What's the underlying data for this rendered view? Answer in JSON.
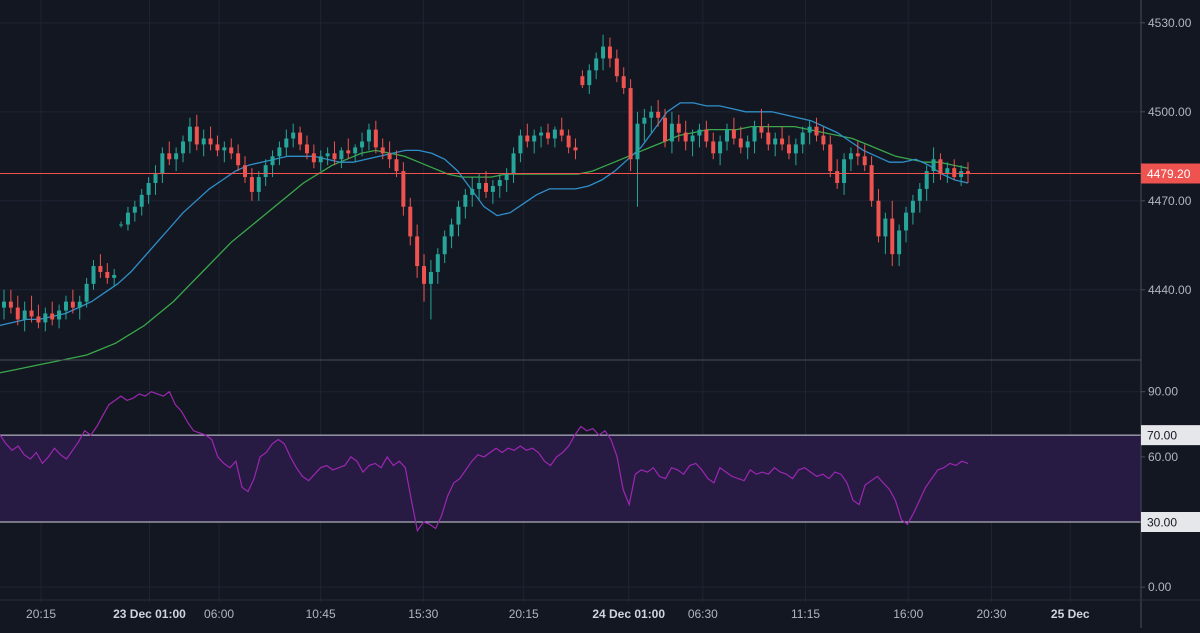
{
  "chart_data": {
    "type": "candlestick",
    "colors": {
      "background": "#131722",
      "grid": "#1f2433",
      "up": "#26a69a",
      "down": "#ef5350",
      "ma_fast": "#2f8fc9",
      "ma_slow": "#3aa84a",
      "rsi_line": "#9c27b0",
      "rsi_band": "#2a1b47",
      "last_price_line": "#ef5350",
      "band_lines": "#d1d4dc",
      "axis_text": "#b2b5be"
    },
    "price_panel": {
      "ylim": [
        4417,
        4535
      ],
      "y_ticks": [
        "4530.00",
        "4500.00",
        "4470.00",
        "4440.00"
      ],
      "y_tick_values": [
        4530,
        4500,
        4470,
        4440
      ],
      "last_price": 4479.2,
      "last_price_label": "4479.20",
      "candles": [
        [
          4434,
          4440,
          4430,
          4436
        ],
        [
          4436,
          4440,
          4432,
          4434
        ],
        [
          4434,
          4438,
          4428,
          4430
        ],
        [
          4430,
          4436,
          4426,
          4433
        ],
        [
          4433,
          4438,
          4429,
          4431
        ],
        [
          4431,
          4435,
          4427,
          4429
        ],
        [
          4429,
          4434,
          4426,
          4432
        ],
        [
          4432,
          4436,
          4428,
          4430
        ],
        [
          4430,
          4435,
          4427,
          4433
        ],
        [
          4433,
          4438,
          4430,
          4436
        ],
        [
          4436,
          4440,
          4432,
          4434
        ],
        [
          4434,
          4438,
          4430,
          4436
        ],
        [
          4436,
          4444,
          4434,
          4442
        ],
        [
          4442,
          4450,
          4440,
          4448
        ],
        [
          4448,
          4452,
          4444,
          4446
        ],
        [
          4446,
          4449,
          4442,
          4444
        ],
        [
          4444,
          4447,
          4441,
          4445
        ],
        [
          4462,
          4463,
          4461,
          4462
        ],
        [
          4462,
          4468,
          4460,
          4466
        ],
        [
          4466,
          4470,
          4463,
          4468
        ],
        [
          4468,
          4474,
          4465,
          4472
        ],
        [
          4472,
          4478,
          4469,
          4476
        ],
        [
          4476,
          4482,
          4472,
          4479
        ],
        [
          4479,
          4488,
          4476,
          4486
        ],
        [
          4486,
          4490,
          4482,
          4484
        ],
        [
          4484,
          4488,
          4480,
          4486
        ],
        [
          4486,
          4492,
          4483,
          4490
        ],
        [
          4490,
          4498,
          4486,
          4495
        ],
        [
          4495,
          4499,
          4487,
          4489
        ],
        [
          4489,
          4494,
          4485,
          4491
        ],
        [
          4491,
          4495,
          4487,
          4489
        ],
        [
          4489,
          4492,
          4485,
          4487
        ],
        [
          4487,
          4490,
          4483,
          4488
        ],
        [
          4488,
          4491,
          4484,
          4486
        ],
        [
          4486,
          4489,
          4480,
          4482
        ],
        [
          4482,
          4485,
          4476,
          4478
        ],
        [
          4478,
          4481,
          4470,
          4473
        ],
        [
          4473,
          4480,
          4470,
          4478
        ],
        [
          4478,
          4484,
          4475,
          4482
        ],
        [
          4482,
          4487,
          4478,
          4485
        ],
        [
          4485,
          4490,
          4482,
          4488
        ],
        [
          4488,
          4494,
          4485,
          4491
        ],
        [
          4491,
          4496,
          4488,
          4493
        ],
        [
          4493,
          4495,
          4487,
          4489
        ],
        [
          4489,
          4492,
          4484,
          4486
        ],
        [
          4486,
          4489,
          4481,
          4483
        ],
        [
          4483,
          4487,
          4480,
          4485
        ],
        [
          4485,
          4488,
          4482,
          4486
        ],
        [
          4486,
          4490,
          4482,
          4484
        ],
        [
          4484,
          4488,
          4481,
          4487
        ],
        [
          4487,
          4491,
          4484,
          4486
        ],
        [
          4486,
          4489,
          4483,
          4488
        ],
        [
          4488,
          4493,
          4485,
          4490
        ],
        [
          4490,
          4496,
          4487,
          4494
        ],
        [
          4494,
          4497,
          4486,
          4488
        ],
        [
          4488,
          4491,
          4484,
          4486
        ],
        [
          4486,
          4490,
          4481,
          4484
        ],
        [
          4484,
          4487,
          4478,
          4480
        ],
        [
          4480,
          4483,
          4465,
          4468
        ],
        [
          4468,
          4471,
          4455,
          4458
        ],
        [
          4458,
          4462,
          4444,
          4448
        ],
        [
          4448,
          4452,
          4436,
          4442
        ],
        [
          4442,
          4450,
          4430,
          4446
        ],
        [
          4446,
          4454,
          4442,
          4452
        ],
        [
          4452,
          4460,
          4449,
          4458
        ],
        [
          4458,
          4464,
          4454,
          4462
        ],
        [
          4462,
          4470,
          4458,
          4468
        ],
        [
          4468,
          4474,
          4464,
          4472
        ],
        [
          4472,
          4478,
          4468,
          4474
        ],
        [
          4474,
          4479,
          4470,
          4476
        ],
        [
          4476,
          4480,
          4471,
          4473
        ],
        [
          4473,
          4477,
          4469,
          4475
        ],
        [
          4475,
          4479,
          4471,
          4477
        ],
        [
          4477,
          4481,
          4473,
          4479
        ],
        [
          4479,
          4488,
          4476,
          4486
        ],
        [
          4486,
          4494,
          4483,
          4492
        ],
        [
          4492,
          4496,
          4488,
          4490
        ],
        [
          4490,
          4494,
          4486,
          4492
        ],
        [
          4492,
          4495,
          4488,
          4493
        ],
        [
          4493,
          4496,
          4489,
          4491
        ],
        [
          4491,
          4495,
          4488,
          4494
        ],
        [
          4494,
          4498,
          4490,
          4492
        ],
        [
          4492,
          4494,
          4486,
          4488
        ],
        [
          4488,
          4491,
          4484,
          4487
        ],
        [
          4512,
          4514,
          4508,
          4509
        ],
        [
          4509,
          4516,
          4506,
          4514
        ],
        [
          4514,
          4520,
          4511,
          4518
        ],
        [
          4518,
          4526,
          4514,
          4522
        ],
        [
          4522,
          4525,
          4515,
          4518
        ],
        [
          4518,
          4521,
          4510,
          4512
        ],
        [
          4512,
          4515,
          4506,
          4508
        ],
        [
          4508,
          4511,
          4480,
          4484
        ],
        [
          4484,
          4500,
          4468,
          4496
        ],
        [
          4496,
          4501,
          4490,
          4498
        ],
        [
          4498,
          4502,
          4493,
          4500
        ],
        [
          4500,
          4504,
          4495,
          4498
        ],
        [
          4498,
          4501,
          4488,
          4490
        ],
        [
          4490,
          4500,
          4486,
          4496
        ],
        [
          4496,
          4499,
          4490,
          4493
        ],
        [
          4493,
          4497,
          4487,
          4490
        ],
        [
          4490,
          4494,
          4485,
          4492
        ],
        [
          4492,
          4496,
          4488,
          4494
        ],
        [
          4494,
          4497,
          4488,
          4490
        ],
        [
          4490,
          4493,
          4484,
          4486
        ],
        [
          4486,
          4492,
          4482,
          4490
        ],
        [
          4490,
          4496,
          4487,
          4494
        ],
        [
          4494,
          4498,
          4489,
          4491
        ],
        [
          4491,
          4495,
          4486,
          4488
        ],
        [
          4488,
          4492,
          4484,
          4490
        ],
        [
          4490,
          4497,
          4486,
          4495
        ],
        [
          4495,
          4501,
          4491,
          4493
        ],
        [
          4493,
          4496,
          4487,
          4489
        ],
        [
          4489,
          4493,
          4485,
          4491
        ],
        [
          4491,
          4495,
          4487,
          4489
        ],
        [
          4489,
          4492,
          4484,
          4486
        ],
        [
          4486,
          4491,
          4482,
          4489
        ],
        [
          4489,
          4495,
          4486,
          4493
        ],
        [
          4493,
          4497,
          4489,
          4495
        ],
        [
          4495,
          4498,
          4490,
          4492
        ],
        [
          4492,
          4495,
          4487,
          4489
        ],
        [
          4489,
          4492,
          4478,
          4480
        ],
        [
          4480,
          4484,
          4474,
          4476
        ],
        [
          4476,
          4486,
          4472,
          4484
        ],
        [
          4484,
          4488,
          4480,
          4486
        ],
        [
          4486,
          4490,
          4482,
          4485
        ],
        [
          4485,
          4489,
          4480,
          4482
        ],
        [
          4482,
          4485,
          4468,
          4470
        ],
        [
          4470,
          4474,
          4456,
          4458
        ],
        [
          4458,
          4466,
          4452,
          4464
        ],
        [
          4464,
          4470,
          4448,
          4452
        ],
        [
          4452,
          4462,
          4448,
          4460
        ],
        [
          4460,
          4468,
          4456,
          4466
        ],
        [
          4466,
          4472,
          4462,
          4470
        ],
        [
          4470,
          4476,
          4466,
          4474
        ],
        [
          4474,
          4482,
          4470,
          4480
        ],
        [
          4480,
          4488,
          4476,
          4484
        ],
        [
          4484,
          4486,
          4477,
          4479
        ],
        [
          4479,
          4483,
          4476,
          4481
        ],
        [
          4481,
          4484,
          4477,
          4478
        ],
        [
          4478,
          4482,
          4475,
          4480
        ],
        [
          4480,
          4483,
          4476,
          4479
        ]
      ],
      "ma_fast": [
        4428,
        4429,
        4430,
        4430,
        4431,
        4432,
        4434,
        4436,
        4439,
        4442,
        4446,
        4451,
        4456,
        4461,
        4466,
        4470,
        4474,
        4477,
        4480,
        4482,
        4483,
        4484,
        4485,
        4485,
        4485,
        4484,
        4483,
        4483,
        4484,
        4485,
        4486,
        4487,
        4487,
        4486,
        4484,
        4480,
        4474,
        4468,
        4465,
        4466,
        4469,
        4472,
        4474,
        4474,
        4474,
        4475,
        4477,
        4480,
        4484,
        4488,
        4494,
        4500,
        4503,
        4503,
        4502,
        4502,
        4501,
        4500,
        4500,
        4500,
        4499,
        4498,
        4497,
        4495,
        4493,
        4490,
        4487,
        4485,
        4483,
        4483,
        4484,
        4482,
        4479,
        4477,
        4476
      ],
      "ma_slow": [
        4412,
        4413,
        4414,
        4415,
        4416,
        4417,
        4418,
        4420,
        4422,
        4425,
        4428,
        4432,
        4436,
        4441,
        4446,
        4451,
        4456,
        4460,
        4464,
        4468,
        4472,
        4476,
        4479,
        4482,
        4484,
        4486,
        4487,
        4486,
        4485,
        4483,
        4481,
        4479,
        4478,
        4478,
        4478,
        4479,
        4479,
        4479,
        4479,
        4479,
        4479,
        4480,
        4482,
        4484,
        4486,
        4488,
        4490,
        4492,
        4493,
        4494,
        4494,
        4494,
        4495,
        4495,
        4495,
        4495,
        4494,
        4493,
        4492,
        4491,
        4489,
        4487,
        4485,
        4484,
        4483,
        4483,
        4482,
        4481
      ]
    },
    "rsi_panel": {
      "ylim": [
        -5,
        100
      ],
      "y_ticks": [
        "90.00",
        "60.00",
        "0.00"
      ],
      "y_tick_values": [
        90,
        60,
        0
      ],
      "overbought": 70,
      "oversold": 30,
      "overbought_label": "70.00",
      "oversold_label": "30.00",
      "values": [
        70,
        66,
        63,
        65,
        61,
        59,
        62,
        57,
        60,
        64,
        61,
        59,
        63,
        67,
        72,
        70,
        74,
        79,
        84,
        86,
        88,
        86,
        87,
        89,
        88,
        90,
        89,
        88,
        90,
        84,
        81,
        76,
        72,
        71,
        70,
        68,
        60,
        57,
        55,
        58,
        46,
        44,
        50,
        60,
        62,
        66,
        68,
        66,
        60,
        55,
        51,
        49,
        52,
        55,
        56,
        54,
        55,
        56,
        60,
        58,
        53,
        56,
        57,
        55,
        60,
        56,
        58,
        55,
        40,
        26,
        30,
        29,
        27,
        33,
        42,
        48,
        50,
        54,
        58,
        61,
        60,
        62,
        64,
        62,
        64,
        63,
        65,
        63,
        64,
        62,
        58,
        56,
        60,
        62,
        65,
        70,
        74,
        72,
        73,
        70,
        72,
        68,
        60,
        45,
        38,
        52,
        54,
        53,
        55,
        51,
        50,
        55,
        54,
        52,
        56,
        57,
        54,
        50,
        48,
        55,
        53,
        51,
        50,
        49,
        54,
        52,
        53,
        52,
        55,
        53,
        52,
        50,
        54,
        55,
        53,
        51,
        52,
        50,
        53,
        52,
        48,
        40,
        38,
        47,
        49,
        51,
        48,
        45,
        40,
        31,
        29,
        34,
        40,
        46,
        50,
        54,
        55,
        57,
        56,
        58,
        57
      ]
    },
    "x_labels": [
      {
        "text": "20:15",
        "bold": false,
        "pos": 0.036
      },
      {
        "text": "23 Dec 01:00",
        "bold": true,
        "pos": 0.131
      },
      {
        "text": "06:00",
        "bold": false,
        "pos": 0.192
      },
      {
        "text": "10:45",
        "bold": false,
        "pos": 0.281
      },
      {
        "text": "15:30",
        "bold": false,
        "pos": 0.371
      },
      {
        "text": "20:15",
        "bold": false,
        "pos": 0.459
      },
      {
        "text": "24 Dec 01:00",
        "bold": true,
        "pos": 0.551
      },
      {
        "text": "06:30",
        "bold": false,
        "pos": 0.616
      },
      {
        "text": "11:15",
        "bold": false,
        "pos": 0.706
      },
      {
        "text": "16:00",
        "bold": false,
        "pos": 0.796
      },
      {
        "text": "20:30",
        "bold": false,
        "pos": 0.869
      },
      {
        "text": "25 Dec",
        "bold": true,
        "pos": 0.938
      }
    ]
  }
}
